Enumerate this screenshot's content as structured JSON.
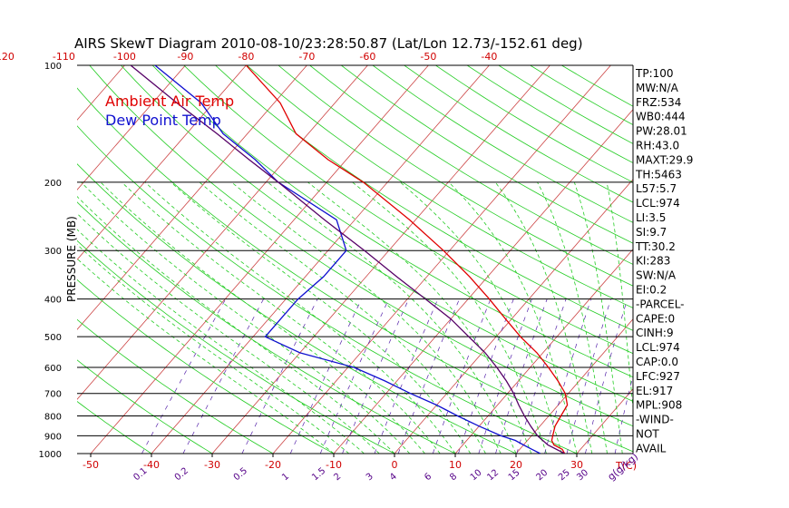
{
  "chart_data": {
    "type": "line",
    "title": "AIRS SkewT Diagram 2010-08-10/23:28:50.87 (Lat/Lon 12.73/-152.61 deg)",
    "ylabel": "PRESSURE (MB)",
    "xlabel_bottom": "T(C)",
    "mixing_ratio_unit": "g(g/kg)",
    "y_scale": "log",
    "ylim": [
      1000,
      100
    ],
    "xlim_bottom": [
      -50,
      40
    ],
    "pressure_ticks": [
      100,
      200,
      300,
      400,
      500,
      600,
      700,
      800,
      900,
      1000
    ],
    "pressure_tick_labels": [
      "100",
      "200",
      "300",
      "400",
      "500",
      "600",
      "700",
      "800",
      "900",
      "1000"
    ],
    "bottom_temp_ticks": [
      -50,
      -40,
      -30,
      -20,
      -10,
      0,
      10,
      20,
      30
    ],
    "bottom_temp_tick_labels": [
      "-50",
      "-40",
      "-30",
      "-20",
      "-10",
      "0",
      "10",
      "20",
      "30"
    ],
    "top_temp_ticks": [
      -120,
      -110,
      -100,
      -90,
      -80,
      -70,
      -60,
      -50,
      -40
    ],
    "top_temp_tick_labels": [
      "-120",
      "-110",
      "-100",
      "-90",
      "-80",
      "-70",
      "-60",
      "-50",
      "-40"
    ],
    "mixing_ratios": [
      "0.1",
      "0.2",
      "0.5",
      "1",
      "1.5",
      "2",
      "3",
      "4",
      "6",
      "8",
      "10",
      "12",
      "15",
      "20",
      "25",
      "30",
      "40"
    ],
    "legend": [
      "Ambient Air Temp",
      "Dew Point Temp"
    ],
    "colors": {
      "ambient": "#e00000",
      "dewpoint": "#1010d0",
      "parcel": "#550066",
      "isotherm": "#cc4444",
      "dry_adiabat": "#22cc22",
      "moist_adiabat": "#22cc22",
      "mixing_ratio": "#5522aa",
      "tick_label": "#d00000",
      "mixing_label": "#550088",
      "index_text": "#000000"
    },
    "series": [
      {
        "name": "Ambient Air Temp",
        "points": [
          [
            1000,
            28
          ],
          [
            975,
            27
          ],
          [
            950,
            25
          ],
          [
            925,
            24
          ],
          [
            900,
            23.5
          ],
          [
            850,
            22.5
          ],
          [
            800,
            22
          ],
          [
            750,
            21.5
          ],
          [
            700,
            19.5
          ],
          [
            650,
            16.5
          ],
          [
            600,
            13
          ],
          [
            550,
            9
          ],
          [
            500,
            4
          ],
          [
            450,
            -1
          ],
          [
            400,
            -6.5
          ],
          [
            350,
            -13
          ],
          [
            300,
            -21
          ],
          [
            250,
            -31
          ],
          [
            200,
            -44
          ],
          [
            175,
            -53
          ],
          [
            150,
            -62
          ],
          [
            125,
            -69
          ],
          [
            100,
            -80
          ]
        ]
      },
      {
        "name": "Dew Point Temp",
        "points": [
          [
            1000,
            24
          ],
          [
            975,
            22
          ],
          [
            950,
            20
          ],
          [
            925,
            18
          ],
          [
            900,
            15
          ],
          [
            850,
            10
          ],
          [
            800,
            5
          ],
          [
            750,
            0
          ],
          [
            700,
            -6
          ],
          [
            650,
            -12
          ],
          [
            600,
            -19
          ],
          [
            550,
            -30
          ],
          [
            500,
            -38
          ],
          [
            450,
            -38
          ],
          [
            400,
            -38
          ],
          [
            350,
            -37
          ],
          [
            300,
            -37
          ],
          [
            250,
            -43
          ],
          [
            200,
            -58
          ],
          [
            175,
            -65
          ],
          [
            150,
            -74
          ],
          [
            125,
            -82
          ],
          [
            100,
            -95
          ]
        ]
      },
      {
        "points": [
          [
            1000,
            28
          ],
          [
            950,
            24
          ],
          [
            900,
            21
          ],
          [
            850,
            18.5
          ],
          [
            800,
            16
          ],
          [
            750,
            13.5
          ],
          [
            700,
            11
          ],
          [
            650,
            8
          ],
          [
            600,
            4.5
          ],
          [
            550,
            0.5
          ],
          [
            500,
            -4.5
          ],
          [
            450,
            -10
          ],
          [
            400,
            -17
          ],
          [
            350,
            -25
          ],
          [
            300,
            -34
          ],
          [
            250,
            -45
          ],
          [
            200,
            -58
          ],
          [
            175,
            -66
          ],
          [
            150,
            -75
          ],
          [
            125,
            -86
          ],
          [
            100,
            -99
          ]
        ]
      }
    ],
    "indices": [
      "TP:100",
      "MW:N/A",
      "FRZ:534",
      "WB0:444",
      "PW:28.01",
      "RH:43.0",
      "MAXT:29.9",
      "TH:5463",
      "L57:5.7",
      "LCL:974",
      "LI:3.5",
      "SI:9.7",
      "TT:30.2",
      "KI:283",
      "SW:N/A",
      "EI:0.2",
      "-PARCEL-",
      "CAPE:0",
      "CINH:9",
      "LCL:974",
      "CAP:0.0",
      "LFC:927",
      "EL:917",
      "MPL:908",
      "-WIND-",
      "NOT",
      "AVAIL"
    ]
  }
}
